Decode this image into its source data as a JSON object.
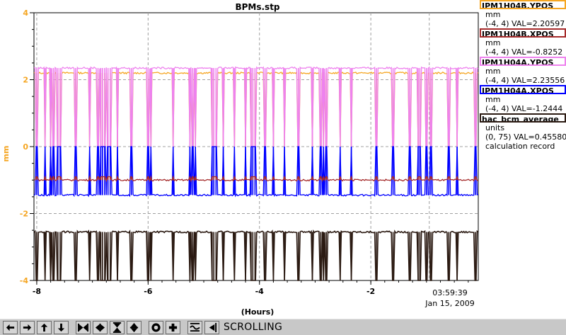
{
  "chart_data": {
    "type": "line",
    "title": "BPMs.stp",
    "xlabel": "(Hours)",
    "ylabel": "mm",
    "xlim": [
      -8.05,
      -0.07
    ],
    "ylim": [
      -4,
      4
    ],
    "grid": true,
    "x_ticks": [
      -8,
      -6,
      -4,
      -2
    ],
    "x_tick_labels": [
      "-8",
      "-6",
      "-4",
      "-2"
    ],
    "y_ticks": [
      4,
      2,
      0,
      -2,
      -4
    ],
    "y_tick_labels": [
      "4",
      "2",
      "0",
      "-2",
      "-4"
    ],
    "timestamp_time": "03:59:39",
    "timestamp_date": "Jan 15, 2009",
    "marker_x": -0.95,
    "series": [
      {
        "name": "IPM1H04B.YPOS",
        "color": "#f5a623",
        "baseline": 2.2,
        "dropout_level": 0.0,
        "units": "mm",
        "range": "(-4, 4)",
        "val": "VAL=2.20597"
      },
      {
        "name": "IPM1H04B.XPOS",
        "color": "#a52a2a",
        "baseline": -1.0,
        "dropout_level": -0.9,
        "units": "mm",
        "range": "(-4, 4)",
        "val": "VAL=-0.8252"
      },
      {
        "name": "IPM1H04A.YPOS",
        "color": "#ee82ee",
        "baseline": 2.35,
        "dropout_level": 0.0,
        "units": "mm",
        "range": "(-4, 4)",
        "val": "VAL=2.23556"
      },
      {
        "name": "IPM1H04A.XPOS",
        "color": "#0000ff",
        "baseline": -1.45,
        "dropout_level": 0.0,
        "units": "mm",
        "range": "(-4, 4)",
        "val": "VAL=-1.2444"
      },
      {
        "name": "hac_bcm_average",
        "color": "#2b1a12",
        "baseline": -2.55,
        "dropout_level": -4.0,
        "units": "units",
        "range": "(0, 75)",
        "val": "VAL=0.45580",
        "extra": "calculation record"
      }
    ],
    "dropouts_x": [
      -8.0,
      -7.85,
      -7.75,
      -7.7,
      -7.62,
      -7.58,
      -7.3,
      -7.05,
      -6.9,
      -6.85,
      -6.82,
      -6.78,
      -6.72,
      -6.68,
      -6.55,
      -6.3,
      -6.0,
      -5.95,
      -5.55,
      -5.25,
      -5.2,
      -5.15,
      -4.85,
      -4.82,
      -4.78,
      -4.65,
      -4.45,
      -4.25,
      -4.15,
      -4.12,
      -4.08,
      -3.9,
      -3.75,
      -3.55,
      -3.3,
      -3.05,
      -2.9,
      -2.85,
      -2.8,
      -2.55,
      -2.35,
      -1.9,
      -1.6,
      -1.3,
      -1.15,
      -1.12,
      -1.0,
      -0.92,
      -0.6,
      -0.45,
      -0.12
    ]
  },
  "toolbar": {
    "status": "SCROLLING",
    "buttons": [
      "arrow-left-icon",
      "arrow-right-icon",
      "arrow-up-icon",
      "arrow-down-icon",
      "compress-horizontal-icon",
      "expand-horizontal-icon",
      "compress-vertical-icon",
      "expand-vertical-icon",
      "record-icon",
      "plus-icon",
      "waveform-icon",
      "scroll-mode-icon"
    ]
  }
}
